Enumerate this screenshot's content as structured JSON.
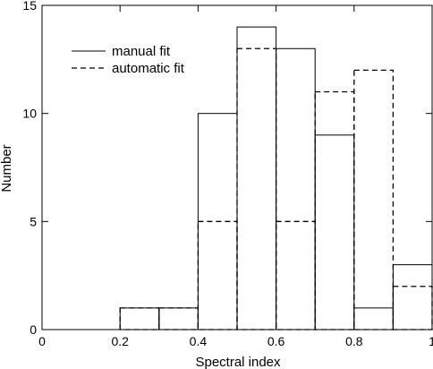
{
  "chart_data": {
    "type": "histogram",
    "xlabel": "Spectral index",
    "ylabel": "Number",
    "xlim": [
      0,
      1
    ],
    "ylim": [
      0,
      15
    ],
    "x_ticks": [
      0,
      0.2,
      0.4,
      0.6,
      0.8,
      1
    ],
    "x_tick_labels": [
      "0",
      "0.2",
      "0.4",
      "0.6",
      "0.8",
      "1"
    ],
    "y_ticks": [
      0,
      5,
      10,
      15
    ],
    "y_tick_labels": [
      "0",
      "5",
      "10",
      "15"
    ],
    "bin_edges": [
      0,
      0.1,
      0.2,
      0.3,
      0.4,
      0.5,
      0.6,
      0.7,
      0.8,
      0.9,
      1.0
    ],
    "series": [
      {
        "name": "manual fit",
        "style": "solid",
        "color": "#000000",
        "values": [
          0,
          0,
          1,
          1,
          10,
          14,
          13,
          9,
          1,
          3
        ]
      },
      {
        "name": "automatic fit",
        "style": "dashed",
        "color": "#000000",
        "values": [
          0,
          0,
          1,
          1,
          5,
          13,
          5,
          11,
          12,
          2
        ]
      }
    ],
    "legend_position": "top-left",
    "grid": false
  }
}
